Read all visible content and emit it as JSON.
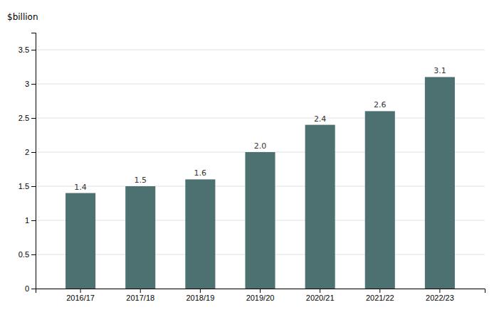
{
  "chart_data": {
    "type": "bar",
    "ylabel": "$billion",
    "categories": [
      "2016/17",
      "2017/18",
      "2018/19",
      "2019/20",
      "2020/21",
      "2021/22",
      "2022/23"
    ],
    "values": [
      1.4,
      1.5,
      1.6,
      2.0,
      2.4,
      2.6,
      3.1
    ],
    "value_labels": [
      "1.4",
      "1.5",
      "1.6",
      "2.0",
      "2.4",
      "2.6",
      "3.1"
    ],
    "data_labels": true,
    "color": "#4d7070",
    "ylim": [
      0,
      3.75
    ],
    "yticks": [
      0,
      0.5,
      1.0,
      1.5,
      2.0,
      2.5,
      3.0,
      3.5
    ],
    "grid": true
  }
}
